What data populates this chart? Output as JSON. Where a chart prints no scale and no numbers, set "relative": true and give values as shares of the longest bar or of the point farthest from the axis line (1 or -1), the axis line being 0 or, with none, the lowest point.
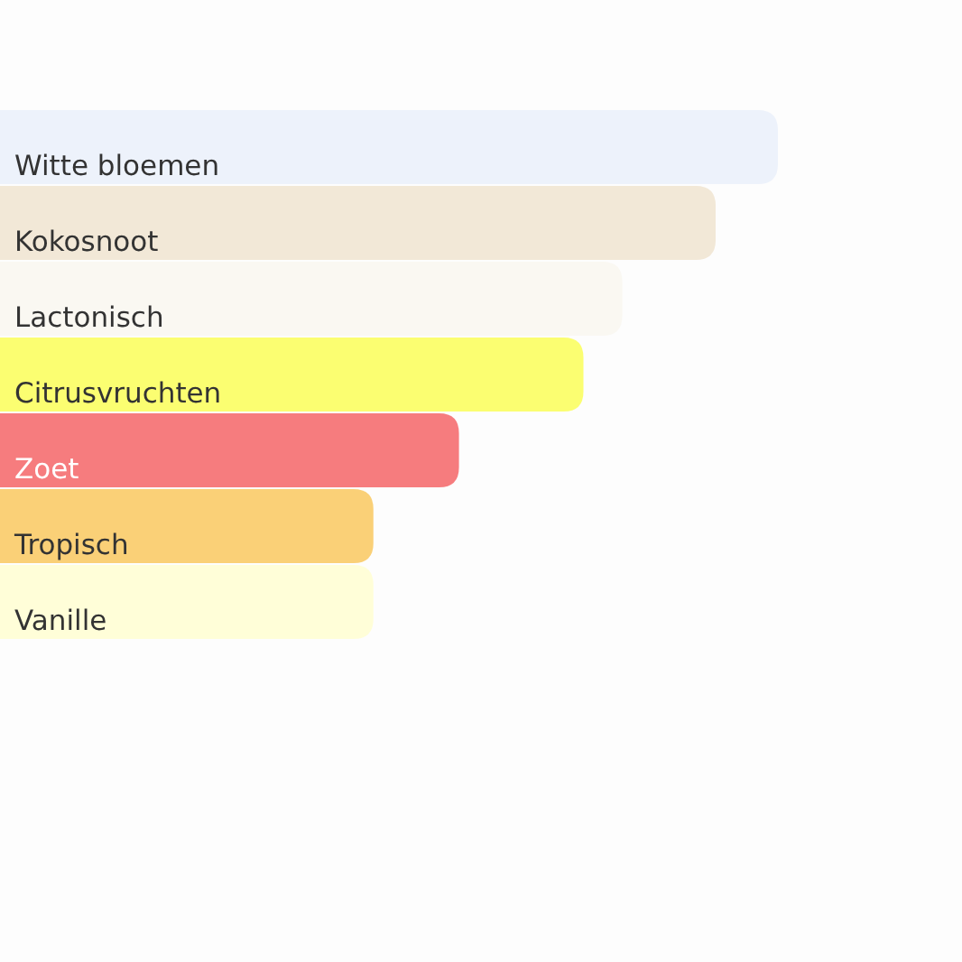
{
  "chart_data": {
    "type": "bar",
    "orientation": "horizontal",
    "relative": true,
    "categories": [
      "Witte bloemen",
      "Kokosnoot",
      "Lactonisch",
      "Citrusvruchten",
      "Zoet",
      "Tropisch",
      "Vanille"
    ],
    "values": [
      1,
      0.92,
      0.8,
      0.75,
      0.59,
      0.48,
      0.48
    ],
    "colors": [
      "#edf2fb",
      "#f2e8d7",
      "#faf8f2",
      "#fbfe71",
      "#f67c7e",
      "#fad077",
      "#fffed8"
    ]
  }
}
